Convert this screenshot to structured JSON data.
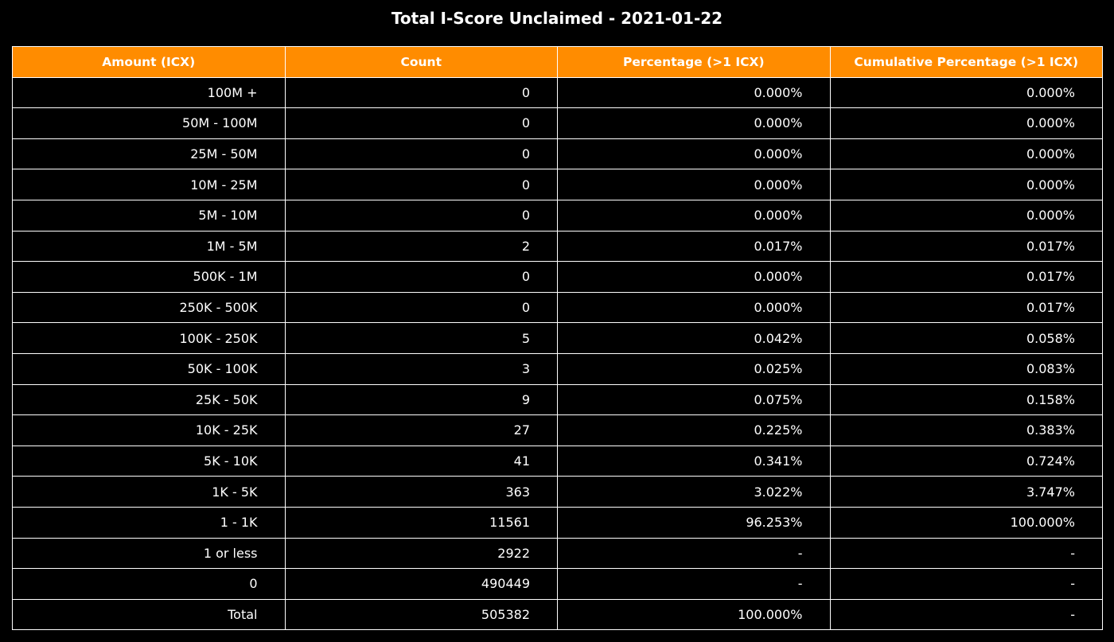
{
  "title": "Total I-Score Unclaimed - 2021-01-22",
  "colors": {
    "background": "#000000",
    "header_background": "#ff8c00",
    "text": "#ffffff",
    "grid": "#ffffff"
  },
  "chart_data": {
    "type": "table",
    "title": "Total I-Score Unclaimed - 2021-01-22",
    "columns": [
      "Amount (ICX)",
      "Count",
      "Percentage (>1 ICX)",
      "Cumulative Percentage (>1 ICX)"
    ],
    "rows": [
      [
        "100M +",
        "0",
        "0.000%",
        "0.000%"
      ],
      [
        "50M - 100M",
        "0",
        "0.000%",
        "0.000%"
      ],
      [
        "25M - 50M",
        "0",
        "0.000%",
        "0.000%"
      ],
      [
        "10M - 25M",
        "0",
        "0.000%",
        "0.000%"
      ],
      [
        "5M - 10M",
        "0",
        "0.000%",
        "0.000%"
      ],
      [
        "1M - 5M",
        "2",
        "0.017%",
        "0.017%"
      ],
      [
        "500K - 1M",
        "0",
        "0.000%",
        "0.017%"
      ],
      [
        "250K - 500K",
        "0",
        "0.000%",
        "0.017%"
      ],
      [
        "100K - 250K",
        "5",
        "0.042%",
        "0.058%"
      ],
      [
        "50K - 100K",
        "3",
        "0.025%",
        "0.083%"
      ],
      [
        "25K - 50K",
        "9",
        "0.075%",
        "0.158%"
      ],
      [
        "10K - 25K",
        "27",
        "0.225%",
        "0.383%"
      ],
      [
        "5K - 10K",
        "41",
        "0.341%",
        "0.724%"
      ],
      [
        "1K - 5K",
        "363",
        "3.022%",
        "3.747%"
      ],
      [
        "1 - 1K",
        "11561",
        "96.253%",
        "100.000%"
      ],
      [
        "1 or less",
        "2922",
        "-",
        "-"
      ],
      [
        "0",
        "490449",
        "-",
        "-"
      ],
      [
        "Total",
        "505382",
        "100.000%",
        "-"
      ]
    ]
  }
}
